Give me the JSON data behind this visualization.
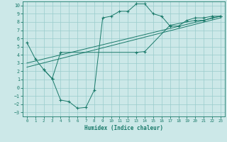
{
  "title": "",
  "xlabel": "Humidex (Indice chaleur)",
  "bg_color": "#cce8e8",
  "grid_color": "#99cccc",
  "line_color": "#1a7a6a",
  "xlim": [
    -0.5,
    23.5
  ],
  "ylim": [
    -3.5,
    10.5
  ],
  "xticks": [
    0,
    1,
    2,
    3,
    4,
    5,
    6,
    7,
    8,
    9,
    10,
    11,
    12,
    13,
    14,
    15,
    16,
    17,
    18,
    19,
    20,
    21,
    22,
    23
  ],
  "yticks": [
    -3,
    -2,
    -1,
    0,
    1,
    2,
    3,
    4,
    5,
    6,
    7,
    8,
    9,
    10
  ],
  "line1_x": [
    0,
    1,
    2,
    3,
    4,
    5,
    6,
    7,
    8,
    9,
    10,
    11,
    12,
    13,
    14,
    15,
    16,
    17,
    18,
    19,
    20,
    21,
    22,
    23
  ],
  "line1_y": [
    5.5,
    3.5,
    2.2,
    1.1,
    -1.5,
    -1.7,
    -2.5,
    -2.4,
    -0.3,
    8.5,
    8.7,
    9.3,
    9.3,
    10.2,
    10.2,
    9.0,
    8.7,
    7.5,
    7.5,
    8.2,
    8.5,
    8.5,
    8.7,
    8.7
  ],
  "line2_x": [
    0,
    23
  ],
  "line2_y": [
    3.0,
    8.7
  ],
  "line3_x": [
    0,
    23
  ],
  "line3_y": [
    2.5,
    8.5
  ],
  "line4_x": [
    2,
    3,
    4,
    13,
    14,
    17,
    20,
    21,
    22,
    23
  ],
  "line4_y": [
    2.2,
    1.1,
    4.3,
    4.3,
    4.4,
    7.6,
    8.2,
    8.2,
    8.5,
    8.7
  ]
}
